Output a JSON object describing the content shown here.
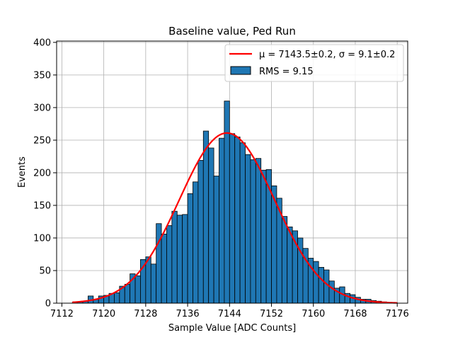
{
  "chart_data": {
    "type": "bar",
    "title": "Baseline value, Ped Run",
    "xlabel": "Sample Value [ADC Counts]",
    "ylabel": "Events",
    "xlim": [
      7111,
      7178
    ],
    "ylim": [
      0,
      402
    ],
    "xticks": [
      7112,
      7120,
      7128,
      7136,
      7144,
      7152,
      7160,
      7168,
      7176
    ],
    "yticks": [
      0,
      50,
      100,
      150,
      200,
      250,
      300,
      350,
      400
    ],
    "grid": true,
    "legend_position": "top-right",
    "bar_color": "#1f77b4",
    "fit_color": "#ff0000",
    "histogram": {
      "name": "RMS = 9.15",
      "bin_edges_start": 7114,
      "bin_width": 1,
      "counts": [
        1,
        2,
        3,
        11,
        6,
        11,
        12,
        15,
        16,
        26,
        29,
        45,
        42,
        67,
        71,
        60,
        122,
        106,
        119,
        141,
        135,
        136,
        168,
        186,
        219,
        264,
        238,
        195,
        253,
        310,
        260,
        255,
        246,
        228,
        220,
        222,
        204,
        205,
        180,
        161,
        133,
        117,
        111,
        100,
        84,
        69,
        64,
        55,
        51,
        34,
        23,
        25,
        15,
        13,
        9,
        6,
        6,
        4,
        3,
        2,
        1,
        1
      ]
    },
    "fit": {
      "name": "μ = 7143.5±0.2, σ = 9.1±0.2",
      "type": "gaussian",
      "mu": 7143.5,
      "sigma": 9.1,
      "amplitude": 261,
      "x_range": [
        7114,
        7176
      ]
    }
  }
}
